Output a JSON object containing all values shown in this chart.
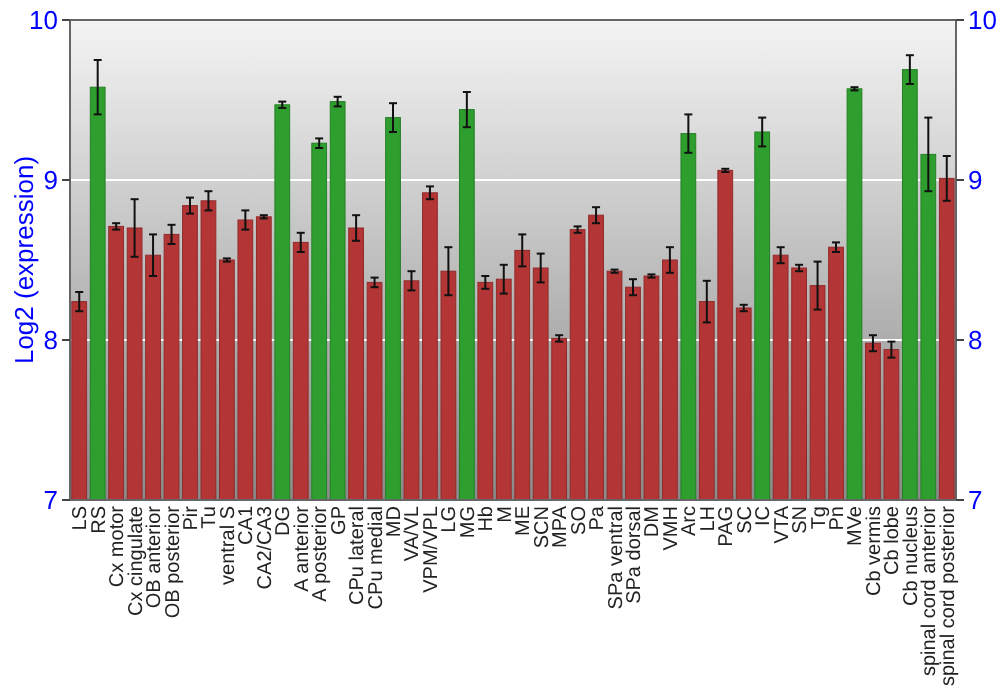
{
  "chart_data": {
    "type": "bar",
    "ylabel": "Log2 (expression)",
    "categories": [
      "LS",
      "RS",
      "Cx motor",
      "Cx cingulate",
      "OB anterior",
      "OB posterior",
      "Pir",
      "Tu",
      "ventral S",
      "CA1",
      "CA2/CA3",
      "DG",
      "A anterior",
      "A posterior",
      "GP",
      "CPu lateral",
      "CPu medial",
      "MD",
      "VA/VL",
      "VPM/VPL",
      "LG",
      "MG",
      "Hb",
      "M",
      "ME",
      "SCN",
      "MPA",
      "SO",
      "Pa",
      "SPa ventral",
      "SPa dorsal",
      "DM",
      "VMH",
      "Arc",
      "LH",
      "PAG",
      "SC",
      "IC",
      "VTA",
      "SN",
      "Tg",
      "Pn",
      "MVe",
      "Cb vermis",
      "Cb lobe",
      "Cb nucleus",
      "spinal cord anterior",
      "spinal cord posterior"
    ],
    "values": [
      8.24,
      9.58,
      8.71,
      8.7,
      8.53,
      8.66,
      8.84,
      8.87,
      8.5,
      8.75,
      8.77,
      9.47,
      8.61,
      9.23,
      9.49,
      8.7,
      8.36,
      9.39,
      8.37,
      8.92,
      8.43,
      9.44,
      8.36,
      8.38,
      8.56,
      8.45,
      8.01,
      8.69,
      8.78,
      8.43,
      8.33,
      8.4,
      8.5,
      9.29,
      8.24,
      9.06,
      8.2,
      9.3,
      8.53,
      8.45,
      8.34,
      8.58,
      9.57,
      7.98,
      7.94,
      9.69,
      9.16,
      9.01
    ],
    "errors": [
      0.06,
      0.17,
      0.02,
      0.18,
      0.13,
      0.06,
      0.05,
      0.06,
      0.01,
      0.06,
      0.01,
      0.02,
      0.06,
      0.03,
      0.03,
      0.08,
      0.03,
      0.09,
      0.06,
      0.04,
      0.15,
      0.11,
      0.04,
      0.09,
      0.1,
      0.09,
      0.02,
      0.02,
      0.05,
      0.01,
      0.05,
      0.01,
      0.08,
      0.12,
      0.13,
      0.01,
      0.02,
      0.09,
      0.05,
      0.02,
      0.15,
      0.03,
      0.01,
      0.05,
      0.05,
      0.09,
      0.23,
      0.14
    ],
    "colors": [
      "#b33535",
      "#2e9e2e",
      "#b33535",
      "#b33535",
      "#b33535",
      "#b33535",
      "#b33535",
      "#b33535",
      "#b33535",
      "#b33535",
      "#b33535",
      "#2e9e2e",
      "#b33535",
      "#2e9e2e",
      "#2e9e2e",
      "#b33535",
      "#b33535",
      "#2e9e2e",
      "#b33535",
      "#b33535",
      "#b33535",
      "#2e9e2e",
      "#b33535",
      "#b33535",
      "#b33535",
      "#b33535",
      "#b33535",
      "#b33535",
      "#b33535",
      "#b33535",
      "#b33535",
      "#b33535",
      "#b33535",
      "#2e9e2e",
      "#b33535",
      "#b33535",
      "#b33535",
      "#2e9e2e",
      "#b33535",
      "#b33535",
      "#b33535",
      "#b33535",
      "#2e9e2e",
      "#b33535",
      "#b33535",
      "#2e9e2e",
      "#2e9e2e",
      "#b33535"
    ],
    "ylim": [
      7,
      10
    ],
    "yticks": [
      7,
      8,
      9,
      10
    ],
    "y2lim": [
      7,
      10
    ],
    "y2ticks": [
      7,
      8,
      9,
      10
    ],
    "grid": "y"
  }
}
